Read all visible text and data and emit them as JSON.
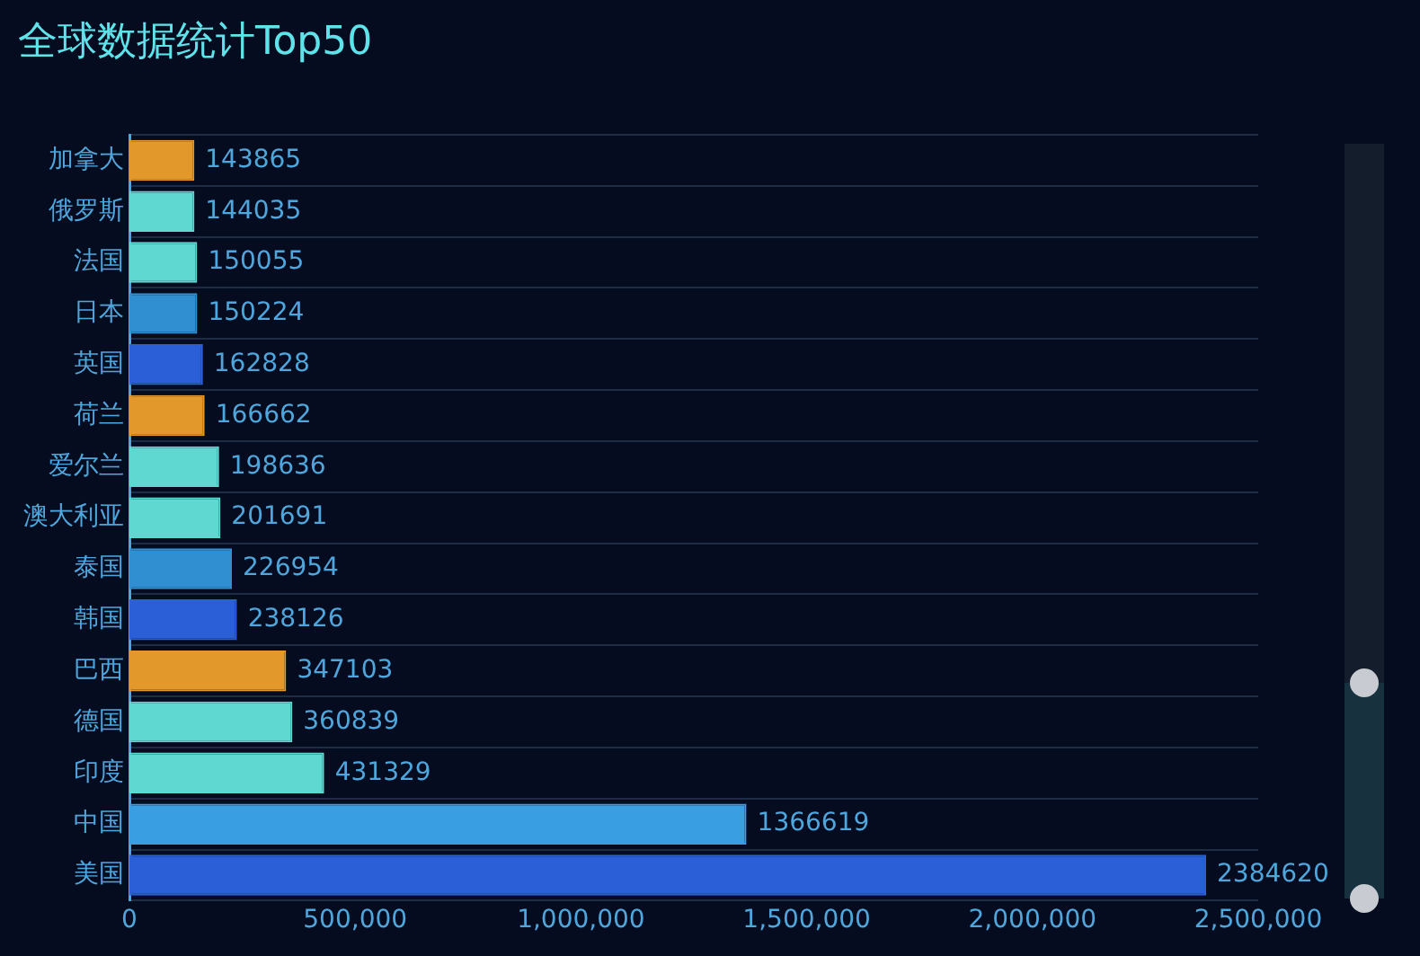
{
  "chart_data": {
    "type": "bar",
    "orientation": "horizontal",
    "title": "全球数据统计Top50",
    "categories": [
      "加拿大",
      "俄罗斯",
      "法国",
      "日本",
      "英国",
      "荷兰",
      "爱尔兰",
      "澳大利亚",
      "泰国",
      "韩国",
      "巴西",
      "德国",
      "印度",
      "中国",
      "美国"
    ],
    "values": [
      143865,
      144035,
      150055,
      150224,
      162828,
      166662,
      198636,
      201691,
      226954,
      238126,
      347103,
      360839,
      431329,
      1366619,
      2384620
    ],
    "colors": [
      "#e3982c",
      "#5fd8d2",
      "#5fd8d2",
      "#2f8fd0",
      "#2b5fd8",
      "#e3982c",
      "#5fd8d2",
      "#5fd8d2",
      "#2f8fd0",
      "#2b5fd8",
      "#e3982c",
      "#5fd8d2",
      "#5fd8d2",
      "#3a9ee2",
      "#2b5fd8"
    ],
    "xlim": [
      0,
      2500000
    ],
    "xticks": [
      {
        "value": 0,
        "label": "0"
      },
      {
        "value": 500000,
        "label": "500,000"
      },
      {
        "value": 1000000,
        "label": "1,000,000"
      },
      {
        "value": 1500000,
        "label": "1,500,000"
      },
      {
        "value": 2000000,
        "label": "2,000,000"
      },
      {
        "value": 2500000,
        "label": "2,500,000"
      }
    ],
    "grid": "y",
    "data_labels": true
  }
}
